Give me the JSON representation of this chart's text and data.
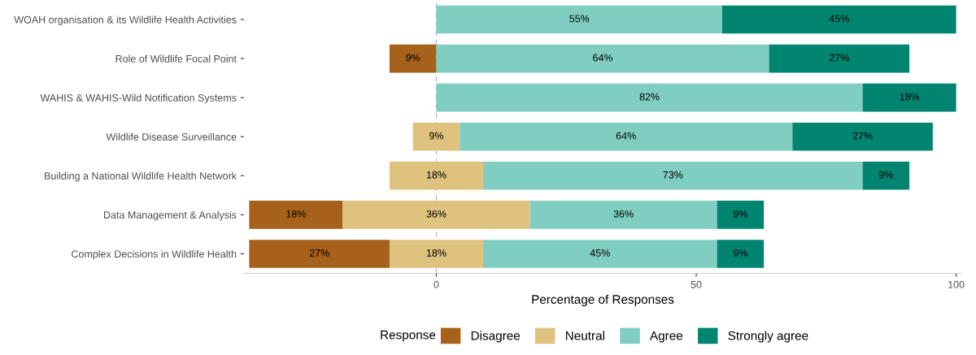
{
  "chart_data": {
    "type": "bar",
    "orientation": "horizontal",
    "categories": [
      "WOAH organisation & its Wildlife Health Activities",
      "Role of Wildlife Focal Point",
      "WAHIS & WAHIS-Wild Notification Systems",
      "Wildlife Disease Surveillance",
      "Building a National Wildlife Health Network",
      "Data Management & Analysis",
      "Complex Decisions in Wildlife Health"
    ],
    "series": [
      {
        "name": "Disagree",
        "color": "#a6611a",
        "values": [
          null,
          9,
          null,
          null,
          null,
          18,
          27
        ],
        "base": [
          null,
          -9,
          null,
          null,
          null,
          -36,
          -36
        ],
        "value_labels": [
          null,
          "9%",
          null,
          null,
          null,
          "18%",
          "27%"
        ]
      },
      {
        "name": "Neutral",
        "color": "#dfc27d",
        "values": [
          null,
          null,
          null,
          9,
          18,
          36,
          18
        ],
        "base": [
          null,
          null,
          null,
          -4.5,
          -9,
          -18,
          -9
        ],
        "value_labels": [
          null,
          null,
          null,
          "9%",
          "18%",
          "36%",
          "18%"
        ]
      },
      {
        "name": "Agree",
        "color": "#80cdc1",
        "values": [
          55,
          64,
          82,
          64,
          73,
          36,
          45
        ],
        "base": [
          0,
          0,
          0,
          4.5,
          9,
          18,
          9
        ],
        "value_labels": [
          "55%",
          "64%",
          "82%",
          "64%",
          "73%",
          "36%",
          "45%"
        ]
      },
      {
        "name": "Strongly agree",
        "color": "#018571",
        "values": [
          45,
          27,
          18,
          27,
          9,
          9,
          9
        ],
        "base": [
          55,
          64,
          82,
          68.5,
          82,
          54,
          54
        ],
        "value_labels": [
          "45%",
          "27%",
          "18%",
          "27%",
          "9%",
          "9%",
          "9%"
        ]
      }
    ],
    "xlabel": "Percentage of Responses",
    "legend_title": "Response",
    "legend": "bottom",
    "xlim": [
      -37,
      101
    ],
    "xticks": [
      0,
      50,
      100
    ],
    "ref_lines": [
      {
        "axis": "x",
        "value": 0,
        "color": "#b3b3b3",
        "line_style": "dashed"
      }
    ],
    "grid": false
  }
}
